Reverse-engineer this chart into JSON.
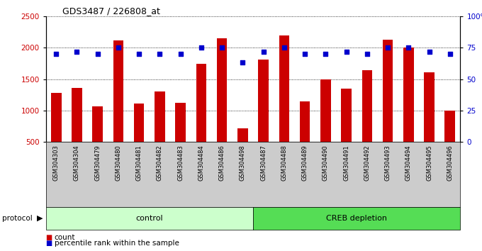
{
  "title": "GDS3487 / 226808_at",
  "samples": [
    "GSM304303",
    "GSM304304",
    "GSM304479",
    "GSM304480",
    "GSM304481",
    "GSM304482",
    "GSM304483",
    "GSM304484",
    "GSM304486",
    "GSM304498",
    "GSM304487",
    "GSM304488",
    "GSM304489",
    "GSM304490",
    "GSM304491",
    "GSM304492",
    "GSM304493",
    "GSM304494",
    "GSM304495",
    "GSM304496"
  ],
  "counts": [
    1285,
    1355,
    1065,
    2115,
    1110,
    1305,
    1120,
    1740,
    2145,
    710,
    1815,
    2200,
    1140,
    1500,
    1350,
    1645,
    2130,
    2000,
    1610,
    1000
  ],
  "percentiles": [
    70,
    72,
    70,
    75,
    70,
    70,
    70,
    75,
    75,
    63,
    72,
    75,
    70,
    70,
    72,
    70,
    75,
    75,
    72,
    70
  ],
  "control_count": 10,
  "creb_count": 10,
  "bar_color": "#cc0000",
  "dot_color": "#0000cc",
  "ylim_left": [
    500,
    2500
  ],
  "ylim_right": [
    0,
    100
  ],
  "yticks_left": [
    500,
    1000,
    1500,
    2000,
    2500
  ],
  "yticks_right": [
    0,
    25,
    50,
    75,
    100
  ],
  "ylabel_right_labels": [
    "0",
    "25",
    "50",
    "75",
    "100%"
  ],
  "control_label": "control",
  "creb_label": "CREB depletion",
  "protocol_label": "protocol",
  "legend_count_label": "count",
  "legend_pct_label": "percentile rank within the sample",
  "bg_color": "#ffffff",
  "plot_bg_color": "#ffffff",
  "tick_label_color_left": "#cc0000",
  "tick_label_color_right": "#0000cc",
  "control_bg": "#ccffcc",
  "creb_bg": "#55dd55",
  "xticklabel_bg": "#cccccc",
  "grid_color": "#000000",
  "title_fontsize": 9,
  "bar_width": 0.5
}
